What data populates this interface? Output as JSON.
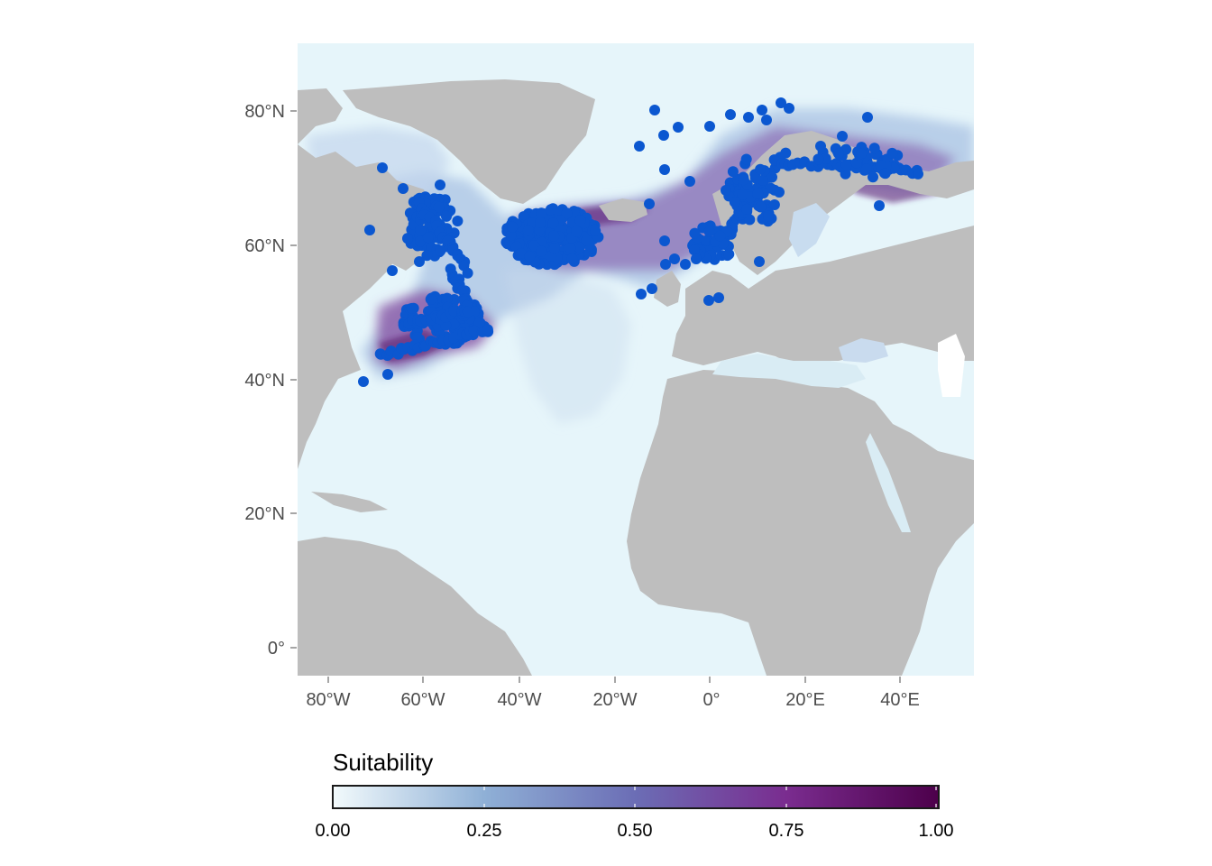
{
  "map": {
    "ocean_color": "#e6f5fa",
    "land_color": "#bebebe",
    "point_color": "#0b57d0",
    "y_ticks": [
      "80°N",
      "60°N",
      "40°N",
      "20°N",
      "0°"
    ],
    "x_ticks": [
      "80°W",
      "60°W",
      "40°W",
      "20°W",
      "0°",
      "20°E",
      "40°E"
    ]
  },
  "legend": {
    "title": "Suitability",
    "ticks": [
      "0.00",
      "0.25",
      "0.50",
      "0.75",
      "1.00"
    ],
    "colors": [
      "#f2fafc",
      "#8fb0d6",
      "#6b6db5",
      "#7a2c8f",
      "#4d004b"
    ]
  }
}
